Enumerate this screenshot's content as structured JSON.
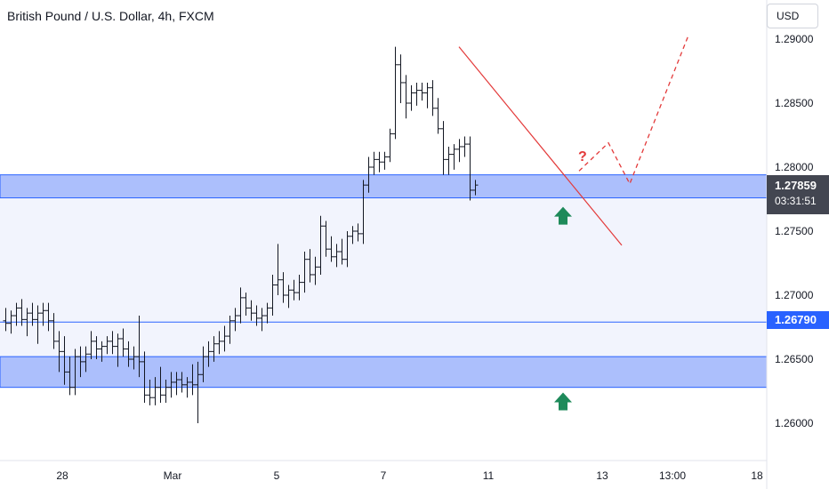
{
  "header": {
    "title": "British Pound / U.S. Dollar, 4h, FXCM"
  },
  "price_scale": {
    "currency": "USD"
  },
  "current_price": {
    "price": "1.27859",
    "countdown": "03:31:51"
  },
  "level_line": {
    "price_label": "1.26790"
  },
  "annotation": {
    "question_mark": "?"
  },
  "colors": {
    "candle": "#131722",
    "zone_fill": "#9db4fb",
    "zone_border": "#2962ff",
    "range_fill": "#f2f4fd",
    "trendline": "#e33a3a",
    "projection": "#e33a3a",
    "arrow": "#1e8a5a"
  },
  "chart_data": {
    "type": "ohlc",
    "title": "British Pound / U.S. Dollar, 4h, FXCM",
    "y_tick_labels": [
      "1.29000",
      "1.28500",
      "1.28000",
      "1.27500",
      "1.27000",
      "1.26500",
      "1.26000"
    ],
    "x_tick_labels": [
      "28",
      "Mar",
      "5",
      "7",
      "11",
      "13",
      "13:00",
      "18"
    ],
    "ylim": [
      1.2555,
      1.2925
    ],
    "zones": [
      {
        "name": "resistance-support-zone",
        "from": 1.2776,
        "to": 1.2794
      },
      {
        "name": "support-zone",
        "from": 1.2628,
        "to": 1.2652
      }
    ],
    "horizontal_levels": [
      1.2679
    ],
    "trendline": [
      {
        "t": 85,
        "price": 1.2894
      },
      {
        "t": 115.5,
        "price": 1.2739
      }
    ],
    "projection_path": [
      {
        "t": 107.5,
        "price": 1.2797
      },
      {
        "t": 113,
        "price": 1.2819
      },
      {
        "t": 117,
        "price": 1.2787
      },
      {
        "t": 128,
        "price": 1.2903
      }
    ],
    "arrows_up_at": [
      {
        "t": 104.5,
        "price": 1.2769
      },
      {
        "t": 104.5,
        "price": 1.2624
      }
    ],
    "ohlc": [
      [
        1.268,
        1.269,
        1.2672,
        1.2678
      ],
      [
        1.2678,
        1.2688,
        1.267,
        1.2684
      ],
      [
        1.2684,
        1.2694,
        1.2676,
        1.269
      ],
      [
        1.269,
        1.2697,
        1.2676,
        1.2681
      ],
      [
        1.2681,
        1.269,
        1.2668,
        1.2686
      ],
      [
        1.2686,
        1.2694,
        1.2676,
        1.2681
      ],
      [
        1.2681,
        1.2692,
        1.2662,
        1.2686
      ],
      [
        1.2686,
        1.2694,
        1.2676,
        1.2688
      ],
      [
        1.2688,
        1.2694,
        1.2672,
        1.268
      ],
      [
        1.268,
        1.2686,
        1.2658,
        1.2664
      ],
      [
        1.2664,
        1.2672,
        1.264,
        1.2656
      ],
      [
        1.2656,
        1.2668,
        1.263,
        1.264
      ],
      [
        1.264,
        1.2652,
        1.2622,
        1.2628
      ],
      [
        1.2628,
        1.2658,
        1.2622,
        1.2652
      ],
      [
        1.2652,
        1.266,
        1.2636,
        1.2648
      ],
      [
        1.2648,
        1.266,
        1.264,
        1.2654
      ],
      [
        1.2654,
        1.2672,
        1.265,
        1.2664
      ],
      [
        1.2664,
        1.2668,
        1.265,
        1.2658
      ],
      [
        1.2658,
        1.2664,
        1.2648,
        1.266
      ],
      [
        1.266,
        1.2668,
        1.2654,
        1.2664
      ],
      [
        1.2664,
        1.2672,
        1.2654,
        1.266
      ],
      [
        1.266,
        1.267,
        1.2644,
        1.2666
      ],
      [
        1.2666,
        1.2674,
        1.2652,
        1.2658
      ],
      [
        1.2658,
        1.2664,
        1.2644,
        1.265
      ],
      [
        1.265,
        1.266,
        1.2642,
        1.2652
      ],
      [
        1.2652,
        1.2684,
        1.2636,
        1.2648
      ],
      [
        1.2648,
        1.2656,
        1.2616,
        1.2622
      ],
      [
        1.2622,
        1.2634,
        1.2614,
        1.262
      ],
      [
        1.262,
        1.2636,
        1.2614,
        1.2628
      ],
      [
        1.2628,
        1.2644,
        1.2616,
        1.2622
      ],
      [
        1.2622,
        1.2634,
        1.2616,
        1.2628
      ],
      [
        1.2628,
        1.264,
        1.262,
        1.2632
      ],
      [
        1.2632,
        1.264,
        1.2622,
        1.2634
      ],
      [
        1.2634,
        1.264,
        1.2624,
        1.263
      ],
      [
        1.263,
        1.2636,
        1.262,
        1.2632
      ],
      [
        1.2632,
        1.2646,
        1.2622,
        1.263
      ],
      [
        1.263,
        1.2648,
        1.26,
        1.2638
      ],
      [
        1.2638,
        1.266,
        1.2632,
        1.2652
      ],
      [
        1.2652,
        1.2664,
        1.2644,
        1.2656
      ],
      [
        1.2656,
        1.2668,
        1.2648,
        1.2662
      ],
      [
        1.2662,
        1.2672,
        1.2654,
        1.2664
      ],
      [
        1.2664,
        1.2676,
        1.2656,
        1.2668
      ],
      [
        1.2668,
        1.2684,
        1.2662,
        1.268
      ],
      [
        1.268,
        1.269,
        1.2672,
        1.2684
      ],
      [
        1.2684,
        1.2706,
        1.2678,
        1.2698
      ],
      [
        1.2698,
        1.2702,
        1.2684,
        1.269
      ],
      [
        1.269,
        1.2696,
        1.268,
        1.2686
      ],
      [
        1.2686,
        1.2692,
        1.2676,
        1.2682
      ],
      [
        1.2682,
        1.269,
        1.2672,
        1.2684
      ],
      [
        1.2684,
        1.2694,
        1.2678,
        1.269
      ],
      [
        1.269,
        1.2716,
        1.2684,
        1.2708
      ],
      [
        1.2708,
        1.274,
        1.27,
        1.2712
      ],
      [
        1.2712,
        1.2718,
        1.2694,
        1.27
      ],
      [
        1.27,
        1.2708,
        1.269,
        1.2704
      ],
      [
        1.2704,
        1.2712,
        1.2696,
        1.2702
      ],
      [
        1.2702,
        1.2716,
        1.2696,
        1.271
      ],
      [
        1.271,
        1.2734,
        1.2702,
        1.2728
      ],
      [
        1.2728,
        1.2736,
        1.271,
        1.2716
      ],
      [
        1.2716,
        1.273,
        1.2708,
        1.2722
      ],
      [
        1.2722,
        1.2762,
        1.2716,
        1.2754
      ],
      [
        1.2754,
        1.2758,
        1.273,
        1.2736
      ],
      [
        1.2736,
        1.2746,
        1.2726,
        1.273
      ],
      [
        1.273,
        1.274,
        1.2722,
        1.2734
      ],
      [
        1.2734,
        1.2744,
        1.2724,
        1.2728
      ],
      [
        1.2728,
        1.275,
        1.2722,
        1.2746
      ],
      [
        1.2746,
        1.2754,
        1.274,
        1.275
      ],
      [
        1.275,
        1.2756,
        1.2742,
        1.2748
      ],
      [
        1.2748,
        1.279,
        1.274,
        1.2786
      ],
      [
        1.2786,
        1.2808,
        1.278,
        1.28
      ],
      [
        1.28,
        1.2812,
        1.2794,
        1.2806
      ],
      [
        1.2806,
        1.2812,
        1.2796,
        1.2804
      ],
      [
        1.2804,
        1.2812,
        1.2798,
        1.2808
      ],
      [
        1.2808,
        1.283,
        1.2804,
        1.2826
      ],
      [
        1.2826,
        1.2894,
        1.2822,
        1.288
      ],
      [
        1.288,
        1.2888,
        1.285,
        1.2866
      ],
      [
        1.2866,
        1.2872,
        1.2838,
        1.285
      ],
      [
        1.285,
        1.2864,
        1.2844,
        1.2858
      ],
      [
        1.2858,
        1.2866,
        1.2848,
        1.286
      ],
      [
        1.286,
        1.2866,
        1.2852,
        1.2858
      ],
      [
        1.2858,
        1.2866,
        1.2846,
        1.2862
      ],
      [
        1.2862,
        1.2868,
        1.284,
        1.2846
      ],
      [
        1.2846,
        1.2854,
        1.2826,
        1.283
      ],
      [
        1.283,
        1.2836,
        1.2794,
        1.2806
      ],
      [
        1.2806,
        1.2816,
        1.2794,
        1.281
      ],
      [
        1.281,
        1.2818,
        1.2798,
        1.2814
      ],
      [
        1.2814,
        1.2822,
        1.2804,
        1.2816
      ],
      [
        1.2816,
        1.2824,
        1.2808,
        1.2818
      ],
      [
        1.2818,
        1.2824,
        1.2774,
        1.2782
      ],
      [
        1.2782,
        1.279,
        1.2778,
        1.2786
      ]
    ],
    "grid": false,
    "legend": "none"
  }
}
